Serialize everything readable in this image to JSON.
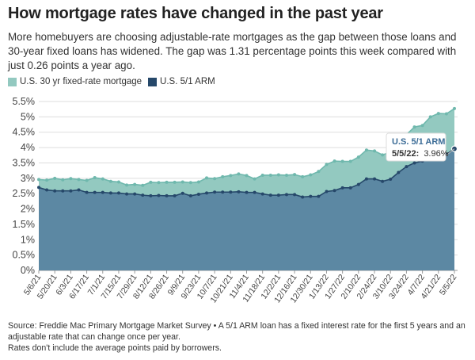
{
  "title": "How mortgage rates have changed in the past year",
  "subtitle": "More homebuyers are choosing adjustable-rate mortgages as the gap between those loans and 30-year fixed loans has widened. The gap was 1.31 percentage points this week compared with just 0.26 points a year ago.",
  "legend": {
    "fixed": "U.S. 30 yr fixed-rate mortgage",
    "arm": "U.S. 5/1 ARM"
  },
  "colors": {
    "fixed_fill": "#93c9c0",
    "fixed_line": "#6fb8ad",
    "arm_fill": "#5c88a3",
    "arm_line": "#26486a",
    "tooltip_title": "#3a6b96"
  },
  "tooltip": {
    "title": "U.S. 5/1 ARM",
    "date": "5/5/22:",
    "value": "3.96%"
  },
  "footer": {
    "line1": "Source: Freddie Mac Primary Mortgage Market Survey • A 5/1 ARM loan has a fixed interest rate for the first 5 years and an adjustable rate that can change once per year.",
    "line2": "Rates don't include the average points paid by borrowers."
  },
  "chart_data": {
    "type": "area",
    "title": "How mortgage rates have changed in the past year",
    "xlabel": "",
    "ylabel": "",
    "ylim": [
      0,
      5.5
    ],
    "y_ticks": [
      "0%",
      "0.5%",
      "1%",
      "1.5%",
      "2%",
      "2.5%",
      "3%",
      "3.5%",
      "4%",
      "4.5%",
      "5%",
      "5.5%"
    ],
    "x_tick_labels": [
      "5/6/21",
      "5/20/21",
      "6/3/21",
      "6/17/21",
      "7/1/21",
      "7/15/21",
      "7/29/21",
      "8/12/21",
      "8/26/21",
      "9/9/21",
      "9/23/21",
      "10/7/21",
      "10/21/21",
      "11/4/21",
      "11/18/21",
      "12/2/21",
      "12/16/21",
      "12/30/21",
      "1/13/22",
      "1/27/22",
      "2/10/22",
      "2/24/22",
      "3/10/22",
      "3/24/22",
      "4/7/22",
      "4/21/22",
      "5/5/22"
    ],
    "grid": true,
    "legend_position": "top-left",
    "x": [
      "5/6/21",
      "5/13/21",
      "5/20/21",
      "5/27/21",
      "6/3/21",
      "6/10/21",
      "6/17/21",
      "6/24/21",
      "7/1/21",
      "7/8/21",
      "7/15/21",
      "7/22/21",
      "7/29/21",
      "8/5/21",
      "8/12/21",
      "8/19/21",
      "8/26/21",
      "9/2/21",
      "9/9/21",
      "9/16/21",
      "9/23/21",
      "9/30/21",
      "10/7/21",
      "10/14/21",
      "10/21/21",
      "10/28/21",
      "11/4/21",
      "11/10/21",
      "11/18/21",
      "11/24/21",
      "12/2/21",
      "12/9/21",
      "12/16/21",
      "12/23/21",
      "12/30/21",
      "1/6/22",
      "1/13/22",
      "1/20/22",
      "1/27/22",
      "2/3/22",
      "2/10/22",
      "2/17/22",
      "2/24/22",
      "3/3/22",
      "3/10/22",
      "3/17/22",
      "3/24/22",
      "3/31/22",
      "4/7/22",
      "4/14/22",
      "4/21/22",
      "4/28/22",
      "5/5/22"
    ],
    "series": [
      {
        "name": "U.S. 30 yr fixed-rate mortgage",
        "values": [
          2.96,
          2.94,
          3.0,
          2.95,
          2.99,
          2.96,
          2.93,
          3.02,
          2.98,
          2.9,
          2.88,
          2.78,
          2.8,
          2.77,
          2.87,
          2.86,
          2.87,
          2.87,
          2.88,
          2.86,
          2.88,
          3.01,
          2.99,
          3.05,
          3.09,
          3.14,
          3.09,
          2.98,
          3.1,
          3.1,
          3.11,
          3.1,
          3.12,
          3.05,
          3.11,
          3.22,
          3.45,
          3.56,
          3.55,
          3.55,
          3.69,
          3.92,
          3.89,
          3.76,
          3.85,
          4.16,
          4.42,
          4.67,
          4.72,
          5.0,
          5.11,
          5.1,
          5.27
        ]
      },
      {
        "name": "U.S. 5/1 ARM",
        "values": [
          2.7,
          2.62,
          2.59,
          2.59,
          2.59,
          2.62,
          2.54,
          2.54,
          2.54,
          2.52,
          2.52,
          2.49,
          2.49,
          2.45,
          2.43,
          2.44,
          2.43,
          2.43,
          2.51,
          2.43,
          2.48,
          2.52,
          2.55,
          2.55,
          2.55,
          2.56,
          2.54,
          2.54,
          2.49,
          2.45,
          2.45,
          2.47,
          2.47,
          2.39,
          2.41,
          2.41,
          2.57,
          2.6,
          2.69,
          2.69,
          2.8,
          2.98,
          2.98,
          2.9,
          2.97,
          3.19,
          3.38,
          3.5,
          3.56,
          3.69,
          3.78,
          3.78,
          3.96
        ]
      }
    ]
  }
}
